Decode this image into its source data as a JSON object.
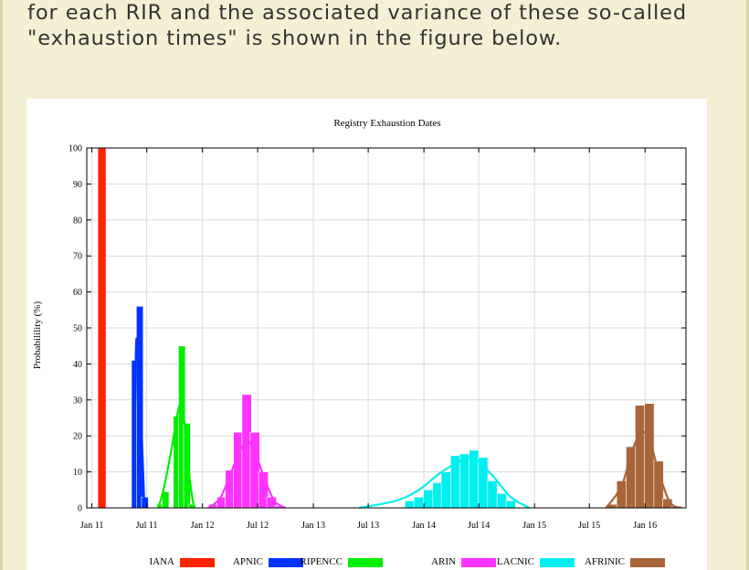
{
  "intro": {
    "line1": "for each RIR and the associated variance of these so-called",
    "line2": "\"exhaustion times\" is shown in the figure below."
  },
  "chart_data": {
    "type": "bar",
    "title": "Registry Exhaustion Dates",
    "xlabel": "",
    "ylabel": "Probabilility (%)",
    "ylim": [
      0,
      100
    ],
    "yticks": [
      0,
      10,
      20,
      30,
      40,
      50,
      60,
      70,
      80,
      90,
      100
    ],
    "xlim": [
      "2010-12-15",
      "2016-05-15"
    ],
    "xticks": [
      "Jan 11",
      "Jul 11",
      "Jan 12",
      "Jul 12",
      "Jan 13",
      "Jul 13",
      "Jan 14",
      "Jul 14",
      "Jan 15",
      "Jul 15",
      "Jan 16"
    ],
    "xtick_dates": [
      "2011-01-01",
      "2011-07-01",
      "2012-01-01",
      "2012-07-01",
      "2013-01-01",
      "2013-07-01",
      "2014-01-01",
      "2014-07-01",
      "2015-01-01",
      "2015-07-01",
      "2016-01-01"
    ],
    "grid": true,
    "legend_position": "bottom",
    "series": [
      {
        "name": "IANA",
        "color": "#ff2200",
        "bars": [
          {
            "x": "2011-02-03",
            "value": 100
          }
        ],
        "curve": []
      },
      {
        "name": "APNIC",
        "color": "#0033ff",
        "bars": [
          {
            "x": "2011-05-23",
            "value": 41
          },
          {
            "x": "2011-06-08",
            "value": 56
          },
          {
            "x": "2011-06-25",
            "value": 3
          }
        ],
        "curve": [
          [
            "2011-05-20",
            0
          ],
          [
            "2011-05-26",
            43
          ],
          [
            "2011-06-01",
            44.5
          ],
          [
            "2011-06-08",
            36
          ],
          [
            "2011-06-16",
            17
          ],
          [
            "2011-06-22",
            3
          ],
          [
            "2011-06-25",
            0
          ]
        ]
      },
      {
        "name": "RIPENCC",
        "color": "#00ee00",
        "bars": [
          {
            "x": "2011-08-15",
            "value": 1
          },
          {
            "x": "2011-09-01",
            "value": 4.5
          },
          {
            "x": "2011-10-08",
            "value": 25.5
          },
          {
            "x": "2011-10-25",
            "value": 45
          },
          {
            "x": "2011-11-11",
            "value": 23.5
          },
          {
            "x": "2011-11-28",
            "value": 1
          }
        ],
        "curve": [
          [
            "2011-08-08",
            0
          ],
          [
            "2011-08-25",
            5
          ],
          [
            "2011-09-20",
            16
          ],
          [
            "2011-10-10",
            26
          ],
          [
            "2011-10-20",
            28
          ],
          [
            "2011-11-05",
            22
          ],
          [
            "2011-11-20",
            8
          ],
          [
            "2011-12-02",
            1
          ]
        ]
      },
      {
        "name": "ARIN",
        "color": "#ff33ff",
        "bars": [
          {
            "x": "2012-02-07",
            "value": 1
          },
          {
            "x": "2012-03-05",
            "value": 3
          },
          {
            "x": "2012-04-01",
            "value": 10.5
          },
          {
            "x": "2012-04-28",
            "value": 21
          },
          {
            "x": "2012-05-26",
            "value": 31.5
          },
          {
            "x": "2012-06-22",
            "value": 21
          },
          {
            "x": "2012-07-20",
            "value": 10
          },
          {
            "x": "2012-08-16",
            "value": 3
          },
          {
            "x": "2012-09-12",
            "value": 0.5
          }
        ],
        "curve": [
          [
            "2012-01-20",
            0
          ],
          [
            "2012-03-01",
            3
          ],
          [
            "2012-04-15",
            12
          ],
          [
            "2012-05-20",
            18
          ],
          [
            "2012-06-15",
            17
          ],
          [
            "2012-07-20",
            9
          ],
          [
            "2012-08-25",
            2
          ],
          [
            "2012-10-01",
            0
          ]
        ]
      },
      {
        "name": "LACNIC",
        "color": "#00f0f0",
        "bars": [
          {
            "x": "2013-11-15",
            "value": 2
          },
          {
            "x": "2013-12-15",
            "value": 3
          },
          {
            "x": "2014-01-15",
            "value": 5
          },
          {
            "x": "2014-02-15",
            "value": 7
          },
          {
            "x": "2014-03-15",
            "value": 10
          },
          {
            "x": "2014-04-15",
            "value": 14.5
          },
          {
            "x": "2014-05-15",
            "value": 15
          },
          {
            "x": "2014-06-15",
            "value": 16
          },
          {
            "x": "2014-07-15",
            "value": 14
          },
          {
            "x": "2014-08-15",
            "value": 7.5
          },
          {
            "x": "2014-09-15",
            "value": 4
          },
          {
            "x": "2014-10-15",
            "value": 2
          }
        ],
        "curve": [
          [
            "2013-06-01",
            0
          ],
          [
            "2013-10-01",
            2
          ],
          [
            "2013-12-15",
            5
          ],
          [
            "2014-03-01",
            10
          ],
          [
            "2014-05-15",
            13.5
          ],
          [
            "2014-06-20",
            13.5
          ],
          [
            "2014-08-15",
            9
          ],
          [
            "2014-10-15",
            3
          ],
          [
            "2014-12-15",
            0
          ]
        ]
      },
      {
        "name": "AFRINIC",
        "color": "#a8653a",
        "bars": [
          {
            "x": "2015-09-15",
            "value": 1
          },
          {
            "x": "2015-10-15",
            "value": 7.5
          },
          {
            "x": "2015-11-15",
            "value": 17
          },
          {
            "x": "2015-12-15",
            "value": 28.5
          },
          {
            "x": "2016-01-15",
            "value": 29
          },
          {
            "x": "2016-02-15",
            "value": 13
          },
          {
            "x": "2016-03-15",
            "value": 2.5
          },
          {
            "x": "2016-04-15",
            "value": 0.5
          }
        ],
        "curve": [
          [
            "2015-08-25",
            0
          ],
          [
            "2015-10-15",
            6
          ],
          [
            "2015-11-20",
            16
          ],
          [
            "2015-12-20",
            21
          ],
          [
            "2016-01-15",
            19
          ],
          [
            "2016-02-15",
            10
          ],
          [
            "2016-03-20",
            2
          ],
          [
            "2016-04-20",
            0
          ]
        ]
      }
    ]
  }
}
